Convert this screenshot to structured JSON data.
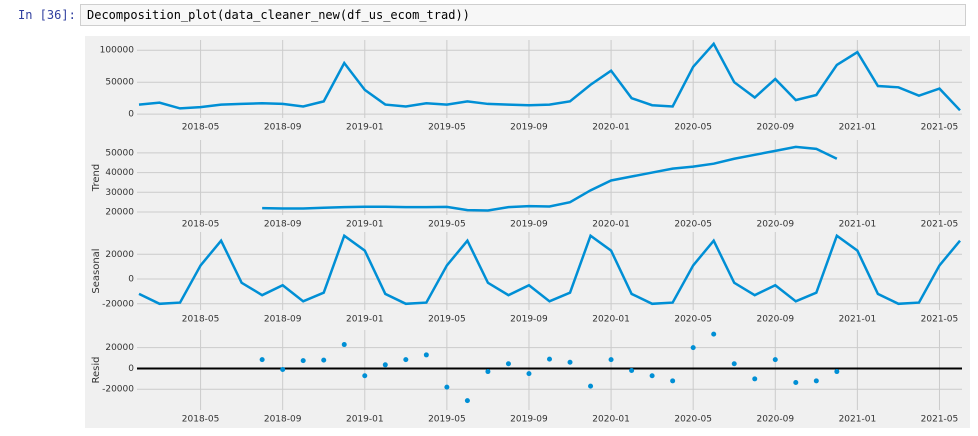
{
  "cell": {
    "prompt": "In [36]:",
    "code": "Decomposition_plot(data_cleaner_new(df_us_ecom_trad))"
  },
  "chart_data": [
    {
      "type": "line",
      "color": "#008fd5",
      "grid": true,
      "x": [
        "2018-02",
        "2018-03",
        "2018-04",
        "2018-05",
        "2018-06",
        "2018-07",
        "2018-08",
        "2018-09",
        "2018-10",
        "2018-11",
        "2018-12",
        "2019-01",
        "2019-02",
        "2019-03",
        "2019-04",
        "2019-05",
        "2019-06",
        "2019-07",
        "2019-08",
        "2019-09",
        "2019-10",
        "2019-11",
        "2019-12",
        "2020-01",
        "2020-02",
        "2020-03",
        "2020-04",
        "2020-05",
        "2020-06",
        "2020-07",
        "2020-08",
        "2020-09",
        "2020-10",
        "2020-11",
        "2020-12",
        "2021-01",
        "2021-02",
        "2021-03",
        "2021-04",
        "2021-05",
        "2021-06"
      ],
      "values": [
        15000,
        18000,
        9000,
        11000,
        15000,
        16000,
        17000,
        16000,
        12000,
        20000,
        80000,
        38000,
        15000,
        12000,
        17000,
        15000,
        20000,
        16000,
        15000,
        14000,
        15000,
        20000,
        46000,
        68000,
        25000,
        14000,
        12000,
        74000,
        110000,
        50000,
        26000,
        55000,
        22000,
        30000,
        77000,
        97000,
        44000,
        42000,
        29000,
        40000,
        6000
      ],
      "xlim": [
        "2018-02",
        "2021-06"
      ],
      "xticks": [
        "2018-05",
        "2018-09",
        "2019-01",
        "2019-05",
        "2019-09",
        "2020-01",
        "2020-05",
        "2020-09",
        "2021-01",
        "2021-05"
      ],
      "ylim": [
        -6000,
        116000
      ],
      "yticks": [
        0,
        50000,
        100000
      ]
    },
    {
      "type": "line",
      "ylabel": "Trend",
      "color": "#008fd5",
      "grid": true,
      "x": [
        "2018-02",
        "2018-03",
        "2018-04",
        "2018-05",
        "2018-06",
        "2018-07",
        "2018-08",
        "2018-09",
        "2018-10",
        "2018-11",
        "2018-12",
        "2019-01",
        "2019-02",
        "2019-03",
        "2019-04",
        "2019-05",
        "2019-06",
        "2019-07",
        "2019-08",
        "2019-09",
        "2019-10",
        "2019-11",
        "2019-12",
        "2020-01",
        "2020-02",
        "2020-03",
        "2020-04",
        "2020-05",
        "2020-06",
        "2020-07",
        "2020-08",
        "2020-09",
        "2020-10",
        "2020-11",
        "2020-12",
        "2021-01",
        "2021-02",
        "2021-03",
        "2021-04",
        "2021-05",
        "2021-06"
      ],
      "values": [
        null,
        null,
        null,
        null,
        null,
        null,
        22000,
        21800,
        21800,
        22200,
        22500,
        22700,
        22700,
        22500,
        22500,
        22600,
        21000,
        20800,
        22500,
        23000,
        22800,
        25000,
        31000,
        36000,
        38000,
        40000,
        42000,
        43000,
        44500,
        47000,
        49000,
        51000,
        53000,
        52000,
        47000,
        null,
        null,
        null,
        null,
        null,
        null
      ],
      "xlim": [
        "2018-02",
        "2021-06"
      ],
      "xticks": [
        "2018-05",
        "2018-09",
        "2019-01",
        "2019-05",
        "2019-09",
        "2020-01",
        "2020-05",
        "2020-09",
        "2021-01",
        "2021-05"
      ],
      "ylim": [
        18500,
        56500
      ],
      "yticks": [
        20000,
        30000,
        40000,
        50000
      ]
    },
    {
      "type": "line",
      "ylabel": "Seasonal",
      "color": "#008fd5",
      "grid": true,
      "x": [
        "2018-02",
        "2018-03",
        "2018-04",
        "2018-05",
        "2018-06",
        "2018-07",
        "2018-08",
        "2018-09",
        "2018-10",
        "2018-11",
        "2018-12",
        "2019-01",
        "2019-02",
        "2019-03",
        "2019-04",
        "2019-05",
        "2019-06",
        "2019-07",
        "2019-08",
        "2019-09",
        "2019-10",
        "2019-11",
        "2019-12",
        "2020-01",
        "2020-02",
        "2020-03",
        "2020-04",
        "2020-05",
        "2020-06",
        "2020-07",
        "2020-08",
        "2020-09",
        "2020-10",
        "2020-11",
        "2020-12",
        "2021-01",
        "2021-02",
        "2021-03",
        "2021-04",
        "2021-05",
        "2021-06"
      ],
      "values": [
        -12000,
        -20000,
        -19000,
        11000,
        31000,
        -3000,
        -13000,
        -5000,
        -18000,
        -11000,
        35000,
        23000,
        -12000,
        -20000,
        -19000,
        11000,
        31000,
        -3000,
        -13000,
        -5000,
        -18000,
        -11000,
        35000,
        23000,
        -12000,
        -20000,
        -19000,
        11000,
        31000,
        -3000,
        -13000,
        -5000,
        -18000,
        -11000,
        35000,
        23000,
        -12000,
        -20000,
        -19000,
        11000,
        31000
      ],
      "xlim": [
        "2018-02",
        "2021-06"
      ],
      "xticks": [
        "2018-05",
        "2018-09",
        "2019-01",
        "2019-05",
        "2019-09",
        "2020-01",
        "2020-05",
        "2020-09",
        "2021-01",
        "2021-05"
      ],
      "ylim": [
        -25000,
        38000
      ],
      "yticks": [
        -20000,
        0,
        20000
      ]
    },
    {
      "type": "scatter",
      "ylabel": "Resid",
      "color": "#008fd5",
      "grid": true,
      "x": [
        "2018-08",
        "2018-09",
        "2018-10",
        "2018-11",
        "2018-12",
        "2019-01",
        "2019-02",
        "2019-03",
        "2019-04",
        "2019-05",
        "2019-06",
        "2019-07",
        "2019-08",
        "2019-09",
        "2019-10",
        "2019-11",
        "2019-12",
        "2020-01",
        "2020-02",
        "2020-03",
        "2020-04",
        "2020-05",
        "2020-06",
        "2020-07",
        "2020-08",
        "2020-09",
        "2020-10",
        "2020-11",
        "2020-12"
      ],
      "values": [
        8500,
        -1000,
        7500,
        8000,
        23000,
        -7000,
        3500,
        8500,
        13000,
        -18000,
        -31000,
        -3000,
        4500,
        -5000,
        9000,
        6000,
        -17000,
        8500,
        -2000,
        -7000,
        -12000,
        20000,
        33000,
        4500,
        -10000,
        8500,
        -13500,
        -12000,
        -3000
      ],
      "xlim": [
        "2018-02",
        "2021-06"
      ],
      "xticks": [
        "2018-05",
        "2018-09",
        "2019-01",
        "2019-05",
        "2019-09",
        "2020-01",
        "2020-05",
        "2020-09",
        "2021-01",
        "2021-05"
      ],
      "ylim": [
        -40000,
        37000
      ],
      "yticks": [
        -20000,
        0,
        20000
      ]
    }
  ]
}
